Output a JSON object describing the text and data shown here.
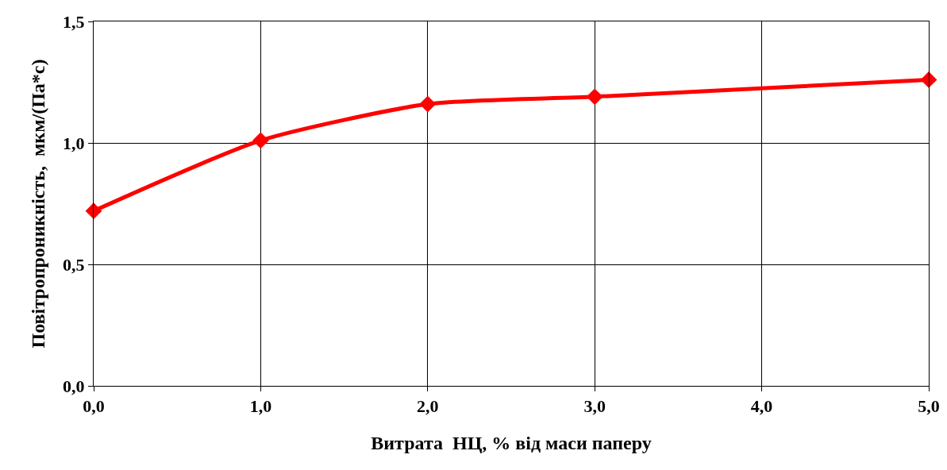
{
  "chart_data": {
    "type": "line",
    "xlabel": "Витрата  НЦ, % від маси паперу",
    "ylabel": "Повітропроникність,  мкм/(Па*с)",
    "x": [
      0,
      1,
      2,
      3,
      5
    ],
    "series": [
      {
        "color": "#ff0000",
        "values": [
          0.72,
          1.01,
          1.16,
          1.19,
          1.26
        ]
      }
    ],
    "xlim": [
      0,
      5
    ],
    "xticks": [
      {
        "value": 0,
        "label": "0,0"
      },
      {
        "value": 1,
        "label": "1,0"
      },
      {
        "value": 2,
        "label": "2,0"
      },
      {
        "value": 3,
        "label": "3,0"
      },
      {
        "value": 4,
        "label": "4,0"
      },
      {
        "value": 5,
        "label": "5,0"
      }
    ],
    "ylim": [
      0,
      1.5
    ],
    "yticks": [
      {
        "value": 0,
        "label": "0,0"
      },
      {
        "value": 0.5,
        "label": "0,5"
      },
      {
        "value": 1,
        "label": "1,0"
      },
      {
        "value": 1.5,
        "label": "1,5"
      }
    ],
    "grid": true,
    "legend": false,
    "marker": "diamond",
    "line_style": "solid"
  }
}
